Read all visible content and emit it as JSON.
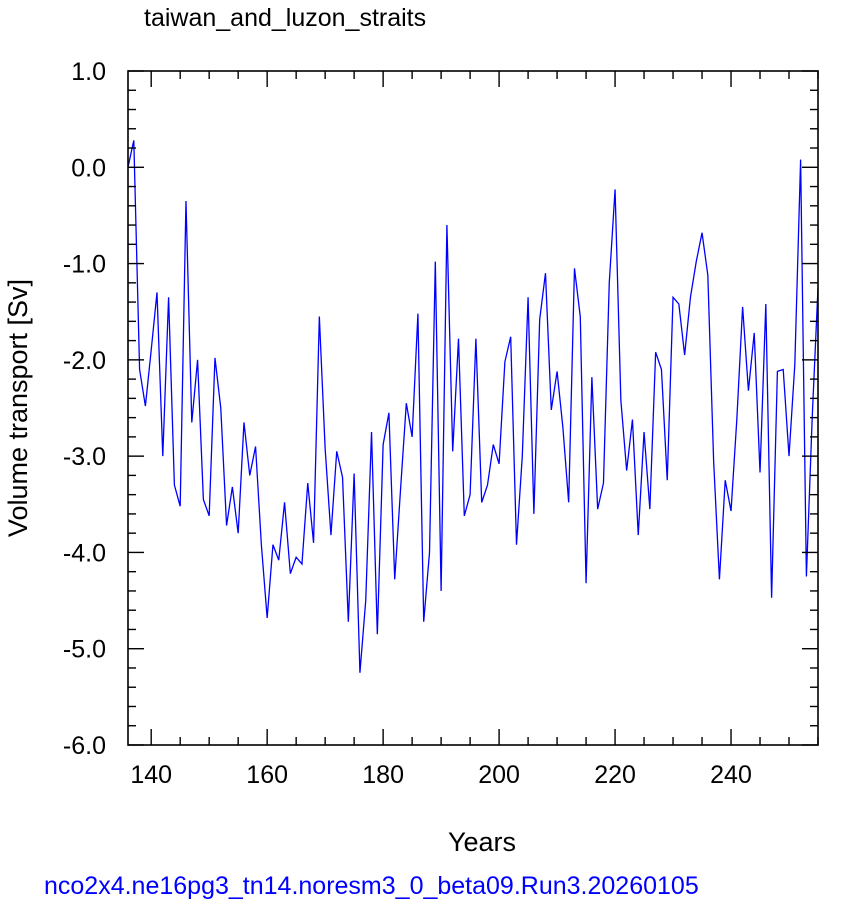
{
  "footer_text": "nco2x4.ne16pg3_tn14.noresm3_0_beta09.Run3.20260105",
  "colors": {
    "line": "#0000ff",
    "footer": "#0000ff",
    "axes": "#000000",
    "background": "#ffffff"
  },
  "chart_data": {
    "type": "line",
    "title": "taiwan_and_luzon_straits",
    "xlabel": "Years",
    "ylabel": "Volume transport [Sv]",
    "xlim": [
      136,
      255
    ],
    "ylim": [
      -6.0,
      1.0
    ],
    "xticks": [
      140,
      160,
      180,
      200,
      220,
      240
    ],
    "yticks": [
      1.0,
      0.0,
      -1.0,
      -2.0,
      -3.0,
      -4.0,
      -5.0,
      -6.0
    ],
    "ytick_labels": [
      "1.0",
      "0.0",
      "-1.0",
      "-2.0",
      "-3.0",
      "-4.0",
      "-5.0",
      "-6.0"
    ],
    "grid": false,
    "legend": "none",
    "series": [
      {
        "x": [
          136,
          137,
          138,
          139,
          140,
          141,
          142,
          143,
          144,
          145,
          146,
          147,
          148,
          149,
          150,
          151,
          152,
          153,
          154,
          155,
          156,
          157,
          158,
          159,
          160,
          161,
          162,
          163,
          164,
          165,
          166,
          167,
          168,
          169,
          170,
          171,
          172,
          173,
          174,
          175,
          176,
          177,
          178,
          179,
          180,
          181,
          182,
          183,
          184,
          185,
          186,
          187,
          188,
          189,
          190,
          191,
          192,
          193,
          194,
          195,
          196,
          197,
          198,
          199,
          200,
          201,
          202,
          203,
          204,
          205,
          206,
          207,
          208,
          209,
          210,
          211,
          212,
          213,
          214,
          215,
          216,
          217,
          218,
          219,
          220,
          221,
          222,
          223,
          224,
          225,
          226,
          227,
          228,
          229,
          230,
          231,
          232,
          233,
          234,
          235,
          236,
          237,
          238,
          239,
          240,
          241,
          242,
          243,
          244,
          245,
          246,
          247,
          248,
          249,
          250,
          251,
          252,
          253,
          254,
          255
        ],
        "y": [
          0.0,
          0.28,
          -2.1,
          -2.48,
          -1.9,
          -1.3,
          -3.0,
          -1.35,
          -3.3,
          -3.52,
          -0.35,
          -2.65,
          -2.0,
          -3.45,
          -3.62,
          -1.98,
          -2.5,
          -3.72,
          -3.32,
          -3.8,
          -2.65,
          -3.2,
          -2.9,
          -3.92,
          -4.68,
          -3.92,
          -4.08,
          -3.48,
          -4.22,
          -4.05,
          -4.12,
          -3.28,
          -3.9,
          -1.55,
          -2.92,
          -3.82,
          -2.95,
          -3.22,
          -4.72,
          -3.18,
          -5.25,
          -4.5,
          -2.75,
          -4.85,
          -2.88,
          -2.55,
          -4.28,
          -3.35,
          -2.45,
          -2.8,
          -1.52,
          -4.72,
          -4.0,
          -0.98,
          -4.4,
          -0.6,
          -2.95,
          -1.78,
          -3.62,
          -3.4,
          -1.78,
          -3.48,
          -3.3,
          -2.88,
          -3.08,
          -2.02,
          -1.76,
          -3.92,
          -3.0,
          -1.35,
          -3.6,
          -1.58,
          -1.1,
          -2.52,
          -2.12,
          -2.7,
          -3.48,
          -1.05,
          -1.55,
          -4.32,
          -2.18,
          -3.55,
          -3.28,
          -1.2,
          -0.23,
          -2.42,
          -3.15,
          -2.62,
          -3.82,
          -2.75,
          -3.55,
          -1.92,
          -2.1,
          -3.25,
          -1.35,
          -1.42,
          -1.95,
          -1.35,
          -0.98,
          -0.68,
          -1.12,
          -3.05,
          -4.28,
          -3.25,
          -3.57,
          -2.62,
          -1.45,
          -2.32,
          -1.72,
          -3.17,
          -1.42,
          -4.47,
          -2.12,
          -2.1,
          -3.0,
          -2.05,
          0.08,
          -4.25,
          -2.6,
          -1.25
        ]
      }
    ]
  }
}
